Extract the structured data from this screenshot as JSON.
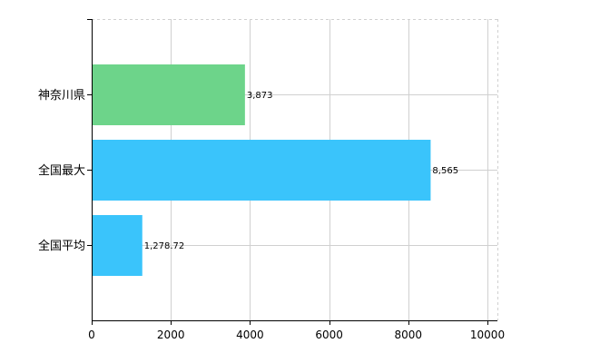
{
  "chart_data": {
    "type": "bar",
    "orientation": "horizontal",
    "categories": [
      "神奈川県",
      "全国最大",
      "全国平均"
    ],
    "values": [
      3873,
      8565,
      1278.72
    ],
    "value_labels": [
      "3,873",
      "8,565",
      "1,278.72"
    ],
    "colors": [
      "#6dd48a",
      "#3ac4fb",
      "#3ac4fb"
    ],
    "xlim": [
      0,
      10000
    ],
    "x_ticks": [
      0,
      2000,
      4000,
      6000,
      8000,
      10000
    ],
    "x_tick_labels": [
      "0",
      "2000",
      "4000",
      "6000",
      "8000",
      "10000"
    ],
    "grid": true,
    "legend": "none",
    "title": "",
    "xlabel": "",
    "ylabel": ""
  }
}
